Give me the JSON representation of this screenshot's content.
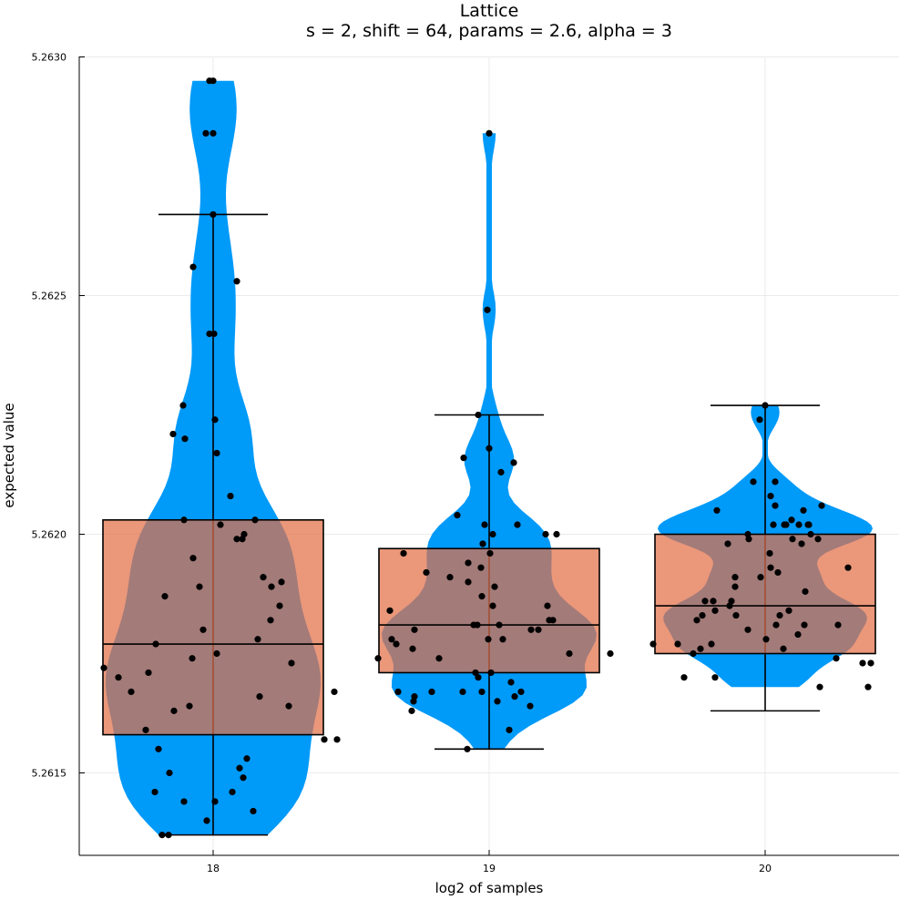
{
  "chart_data": {
    "type": "violin",
    "title": "Lattice",
    "subtitle": "s = 2, shift = 64, params = 2.6, alpha = 3",
    "xlabel": "log2 of samples",
    "ylabel": "expected value",
    "categories": [
      "18",
      "19",
      "20"
    ],
    "yticks": [
      "5.2615",
      "5.2620",
      "5.2625",
      "5.2630"
    ],
    "ylim": [
      5.26133,
      5.263
    ],
    "grid": true,
    "legend": "none",
    "colors": {
      "violin": "#009af9",
      "box": "#e26f46",
      "points": "#000000"
    },
    "groups": [
      {
        "label": "18",
        "box": {
          "whisker_low": 5.26137,
          "q1": 5.26158,
          "median": 5.26177,
          "q3": 5.26203,
          "whisker_high": 5.26267
        },
        "points": [
          [
            -0.04,
            5.26295
          ],
          [
            0.0,
            5.26295
          ],
          [
            -0.08,
            5.26284
          ],
          [
            0.0,
            5.26284
          ],
          [
            0.0,
            5.26267
          ],
          [
            -0.22,
            5.26256
          ],
          [
            0.26,
            5.26253
          ],
          [
            -0.04,
            5.26242
          ],
          [
            0.01,
            5.26242
          ],
          [
            -0.33,
            5.26227
          ],
          [
            0.02,
            5.26224
          ],
          [
            -0.44,
            5.26221
          ],
          [
            -0.31,
            5.2622
          ],
          [
            0.04,
            5.26217
          ],
          [
            0.19,
            5.26208
          ],
          [
            -0.32,
            5.26203
          ],
          [
            0.08,
            5.26202
          ],
          [
            0.46,
            5.26203
          ],
          [
            0.34,
            5.262
          ],
          [
            0.26,
            5.26199
          ],
          [
            0.32,
            5.26199
          ],
          [
            -0.22,
            5.26195
          ],
          [
            0.55,
            5.26191
          ],
          [
            0.75,
            5.2619
          ],
          [
            0.64,
            5.26189
          ],
          [
            -0.15,
            5.26189
          ],
          [
            -0.53,
            5.26187
          ],
          [
            0.73,
            5.26185
          ],
          [
            0.63,
            5.26182
          ],
          [
            -0.11,
            5.2618
          ],
          [
            0.49,
            5.26178
          ],
          [
            -0.63,
            5.26177
          ],
          [
            0.04,
            5.26175
          ],
          [
            -0.23,
            5.26174
          ],
          [
            0.86,
            5.26173
          ],
          [
            -1.2,
            5.26172
          ],
          [
            -0.71,
            5.26171
          ],
          [
            -1.04,
            5.2617
          ],
          [
            -0.9,
            5.26167
          ],
          [
            1.33,
            5.26167
          ],
          [
            0.51,
            5.26166
          ],
          [
            0.83,
            5.26164
          ],
          [
            -0.26,
            5.26164
          ],
          [
            -0.43,
            5.26163
          ],
          [
            -0.74,
            5.26159
          ],
          [
            1.22,
            5.26157
          ],
          [
            1.36,
            5.26157
          ],
          [
            -0.6,
            5.26155
          ],
          [
            0.37,
            5.26153
          ],
          [
            0.29,
            5.26151
          ],
          [
            -0.48,
            5.2615
          ],
          [
            0.33,
            5.26149
          ],
          [
            -0.64,
            5.26146
          ],
          [
            0.21,
            5.26146
          ],
          [
            -0.32,
            5.26144
          ],
          [
            0.02,
            5.26144
          ],
          [
            0.44,
            5.26142
          ],
          [
            -0.07,
            5.2614
          ],
          [
            -0.56,
            5.26137
          ],
          [
            -0.49,
            5.26137
          ]
        ]
      },
      {
        "label": "19",
        "box": {
          "whisker_low": 5.26155,
          "q1": 5.26171,
          "median": 5.26181,
          "q3": 5.26197,
          "whisker_high": 5.26225
        },
        "points": [
          [
            0.0,
            5.26284
          ],
          [
            -0.02,
            5.26247
          ],
          [
            -0.12,
            5.26225
          ],
          [
            0.0,
            5.26218
          ],
          [
            -0.28,
            5.26216
          ],
          [
            0.27,
            5.26215
          ],
          [
            0.13,
            5.26213
          ],
          [
            -0.35,
            5.26204
          ],
          [
            -0.05,
            5.26202
          ],
          [
            0.31,
            5.26202
          ],
          [
            0.04,
            5.262
          ],
          [
            0.62,
            5.262
          ],
          [
            0.74,
            5.262
          ],
          [
            -0.07,
            5.26198
          ],
          [
            -0.94,
            5.26196
          ],
          [
            0.01,
            5.26196
          ],
          [
            -0.23,
            5.26194
          ],
          [
            -0.09,
            5.26193
          ],
          [
            -0.69,
            5.26192
          ],
          [
            -0.43,
            5.26191
          ],
          [
            -0.23,
            5.2619
          ],
          [
            0.06,
            5.26189
          ],
          [
            -0.08,
            5.26187
          ],
          [
            0.64,
            5.26185
          ],
          [
            0.04,
            5.26185
          ],
          [
            -1.09,
            5.26184
          ],
          [
            0.66,
            5.26182
          ],
          [
            0.7,
            5.26182
          ],
          [
            -0.17,
            5.26181
          ],
          [
            -0.13,
            5.26181
          ],
          [
            0.11,
            5.26181
          ],
          [
            -0.82,
            5.2618
          ],
          [
            0.46,
            5.2618
          ],
          [
            0.54,
            5.2618
          ],
          [
            -1.07,
            5.26178
          ],
          [
            -0.01,
            5.26178
          ],
          [
            0.15,
            5.26178
          ],
          [
            -1.02,
            5.26177
          ],
          [
            -0.84,
            5.26176
          ],
          [
            1.33,
            5.26175
          ],
          [
            0.88,
            5.26175
          ],
          [
            -1.22,
            5.26174
          ],
          [
            -0.55,
            5.26174
          ],
          [
            -0.15,
            5.26171
          ],
          [
            -0.12,
            5.2617
          ],
          [
            0.02,
            5.26171
          ],
          [
            0.24,
            5.26169
          ],
          [
            -1.0,
            5.26167
          ],
          [
            0.28,
            5.26166
          ],
          [
            -0.82,
            5.26166
          ],
          [
            0.35,
            5.26167
          ],
          [
            -0.63,
            5.26167
          ],
          [
            -0.29,
            5.26167
          ],
          [
            -0.08,
            5.26167
          ],
          [
            0.09,
            5.26165
          ],
          [
            -0.83,
            5.26165
          ],
          [
            0.45,
            5.26164
          ],
          [
            -0.85,
            5.26163
          ],
          [
            0.22,
            5.26159
          ],
          [
            -0.24,
            5.26155
          ]
        ]
      },
      {
        "label": "20",
        "box": {
          "whisker_low": 5.26163,
          "q1": 5.26175,
          "median": 5.26185,
          "q3": 5.262,
          "whisker_high": 5.26227
        },
        "points": [
          [
            0.0,
            5.26227
          ],
          [
            -0.06,
            5.26224
          ],
          [
            -0.13,
            5.26211
          ],
          [
            0.11,
            5.26211
          ],
          [
            0.06,
            5.26208
          ],
          [
            0.11,
            5.26206
          ],
          [
            0.62,
            5.26206
          ],
          [
            0.42,
            5.26205
          ],
          [
            -0.53,
            5.26205
          ],
          [
            0.29,
            5.26203
          ],
          [
            0.47,
            5.26202
          ],
          [
            0.09,
            5.26202
          ],
          [
            0.37,
            5.26202
          ],
          [
            0.48,
            5.26202
          ],
          [
            0.21,
            5.26202
          ],
          [
            0.23,
            5.26202
          ],
          [
            -0.19,
            5.262
          ],
          [
            0.3,
            5.26199
          ],
          [
            0.58,
            5.26199
          ],
          [
            0.5,
            5.262
          ],
          [
            -0.18,
            5.26199
          ],
          [
            0.4,
            5.26198
          ],
          [
            -0.41,
            5.26198
          ],
          [
            0.05,
            5.26196
          ],
          [
            0.06,
            5.26193
          ],
          [
            0.14,
            5.26192
          ],
          [
            -0.05,
            5.26191
          ],
          [
            0.91,
            5.26193
          ],
          [
            -0.33,
            5.26189
          ],
          [
            -0.33,
            5.26191
          ],
          [
            0.44,
            5.26188
          ],
          [
            -0.37,
            5.26186
          ],
          [
            -0.57,
            5.26186
          ],
          [
            -0.66,
            5.26186
          ],
          [
            -0.39,
            5.26185
          ],
          [
            -0.55,
            5.26184
          ],
          [
            0.26,
            5.26184
          ],
          [
            0.16,
            5.26183
          ],
          [
            -0.69,
            5.26183
          ],
          [
            -0.32,
            5.26183
          ],
          [
            -0.75,
            5.26182
          ],
          [
            0.43,
            5.26181
          ],
          [
            0.12,
            5.26181
          ],
          [
            0.8,
            5.26181
          ],
          [
            -0.19,
            5.2618
          ],
          [
            0.36,
            5.26179
          ],
          [
            0.01,
            5.26178
          ],
          [
            -0.59,
            5.26177
          ],
          [
            -1.23,
            5.26177
          ],
          [
            -0.96,
            5.26177
          ],
          [
            -0.71,
            5.26176
          ],
          [
            -0.79,
            5.26175
          ],
          [
            0.2,
            5.26176
          ],
          [
            0.78,
            5.26174
          ],
          [
            1.07,
            5.26173
          ],
          [
            1.16,
            5.26173
          ],
          [
            -0.89,
            5.2617
          ],
          [
            -0.55,
            5.2617
          ],
          [
            0.6,
            5.26168
          ],
          [
            1.13,
            5.26168
          ]
        ]
      }
    ]
  }
}
